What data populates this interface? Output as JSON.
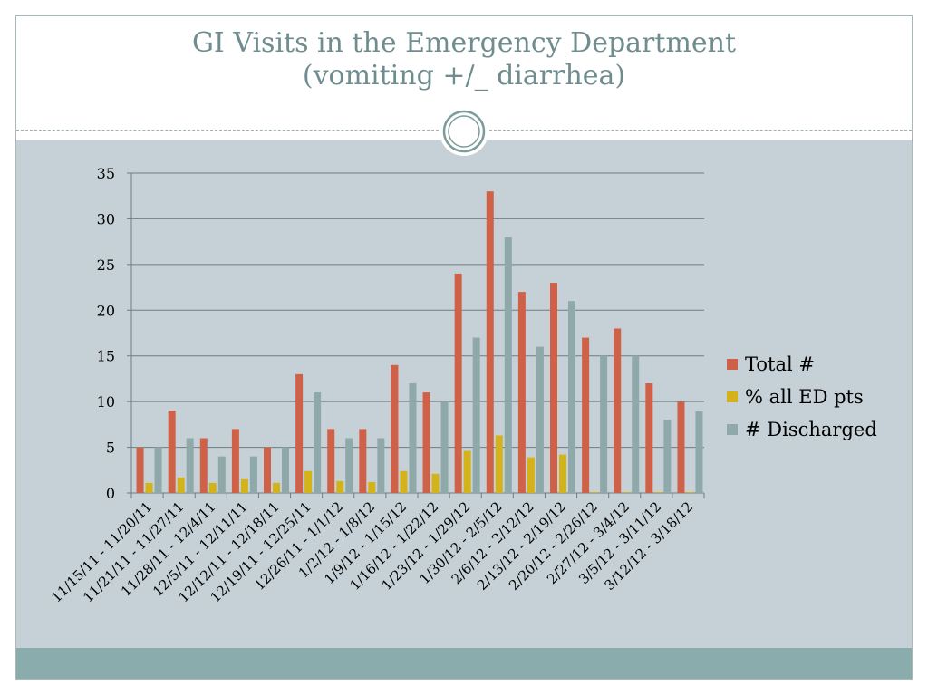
{
  "slide": {
    "title_line1": "GI Visits in the Emergency Department",
    "title_line2": "(vomiting +/_ diarrhea)"
  },
  "colors": {
    "total": "#d06149",
    "pct": "#d3b21a",
    "discharged": "#8fa8a9",
    "background": "#c5d1d6",
    "title": "#6f8d8e",
    "footer": "#8aacad"
  },
  "chart_data": {
    "type": "bar",
    "categories": [
      "11/15/11 - 11/20/11",
      "11/21/11 - 11/27/11",
      "11/28/11 - 12/4/11",
      "12/5/11 - 12/11/11",
      "12/12/11 - 12/18/11",
      "12/19/11 - 12/25/11",
      "12/26/11 - 1/1/12",
      "1/2/12 - 1/8/12",
      "1/9/12 - 1/15/12",
      "1/16/12 - 1/22/12",
      "1/23/12 - 1/29/12",
      "1/30/12 - 2/5/12",
      "2/6/12 - 2/12/12",
      "2/13/12 - 2/19/12",
      "2/20/12 - 2/26/12",
      "2/27/12 - 3/4/12",
      "3/5/12 - 3/11/12",
      "3/12/12 - 3/18/12"
    ],
    "series": [
      {
        "name": "Total #",
        "values": [
          5,
          9,
          6,
          7,
          5,
          13,
          7,
          7,
          14,
          11,
          24,
          33,
          22,
          23,
          17,
          18,
          12,
          10
        ]
      },
      {
        "name": "% all ED pts",
        "values": [
          1.1,
          1.7,
          1.1,
          1.5,
          1.1,
          2.4,
          1.3,
          1.2,
          2.4,
          2.1,
          4.6,
          6.3,
          3.9,
          4.2,
          0.1,
          0.1,
          0.1,
          0.1
        ]
      },
      {
        "name": "# Discharged",
        "values": [
          5,
          6,
          4,
          4,
          5,
          11,
          6,
          6,
          12,
          10,
          17,
          28,
          16,
          21,
          15,
          15,
          8,
          9
        ]
      }
    ],
    "yticks": [
      0,
      5,
      10,
      15,
      20,
      25,
      30,
      35
    ],
    "ylim": [
      0,
      35
    ],
    "grid": true,
    "legend_position": "right"
  }
}
